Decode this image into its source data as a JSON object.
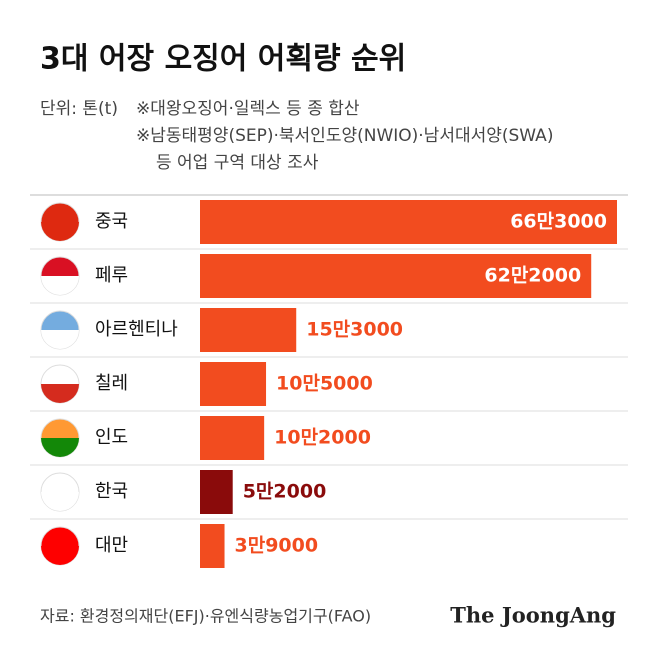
{
  "chart_data": {
    "type": "bar",
    "orientation": "horizontal",
    "title": "3대 어장 오징어 어획량 순위",
    "unit": "단위: 톤(t)",
    "notes": [
      "※대왕오징어·일렉스 등 종 합산",
      "※남동태평양(SEP)·북서인도양(NWIO)·남서대서양(SWA)",
      "등 어업 구역 대상 조사"
    ],
    "categories": [
      "중국",
      "페루",
      "아르헨티나",
      "칠레",
      "인도",
      "한국",
      "대만"
    ],
    "values": [
      663000,
      622000,
      153000,
      105000,
      102000,
      52000,
      39000
    ],
    "value_labels": [
      "66만3000",
      "62만2000",
      "15만3000",
      "10만5000",
      "10만2000",
      "5만2000",
      "3만9000"
    ],
    "colors": [
      "#f24c1f",
      "#f24c1f",
      "#f24c1f",
      "#f24c1f",
      "#f24c1f",
      "#8a0b0b",
      "#f24c1f"
    ],
    "source": "자료: 환경정의재단(EFJ)·유엔식량농업기구(FAO)",
    "brand": "The JoongAng"
  }
}
